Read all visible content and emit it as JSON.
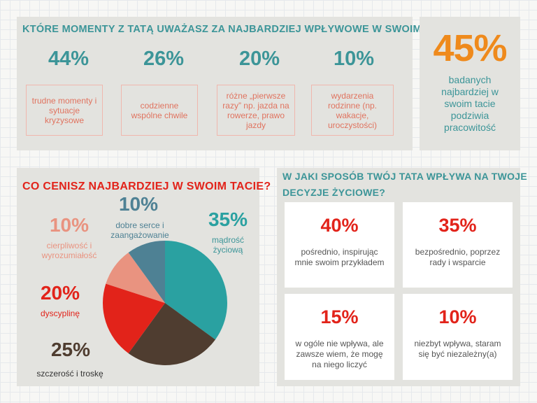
{
  "colors": {
    "teal": "#3c9598",
    "red": "#e2231a",
    "salmon": "#e98f7a",
    "orange": "#ef8a1c",
    "brown": "#4f3d30",
    "slate": "#4e8194",
    "tealchart": "#2aa1a1",
    "salmonpie": "#e99380"
  },
  "moments": {
    "title": "KTÓRE MOMENTY Z TATĄ UWAŻASZ ZA NAJBARDZIEJ WPŁYWOWE W SWOIM ŻYCIU?",
    "items": [
      {
        "pct": "44%",
        "label": "trudne momenty i sytuacje kryzysowe"
      },
      {
        "pct": "26%",
        "label": "codzienne wspólne chwile"
      },
      {
        "pct": "20%",
        "label": "różne „pierwsze razy” np. jazda na rowerze, prawo jazdy"
      },
      {
        "pct": "10%",
        "label": "wydarzenia rodzinne (np. wakacje, uroczystości)"
      }
    ]
  },
  "admire": {
    "pct": "45%",
    "text": "badanych najbardziej w swoim tacie podziwia pracowitość"
  },
  "chart_data": {
    "type": "pie",
    "title": "CO CENISZ NAJBARDZIEJ W SWOIM TACIE?",
    "labels": [
      "mądrość życiową",
      "szczerość i troskę",
      "dyscyplinę",
      "cierpliwość i wyrozumiałość",
      "dobre serce i zaangażowanie"
    ],
    "values": [
      35,
      25,
      20,
      10,
      10
    ],
    "display": [
      "35%",
      "25%",
      "20%",
      "10%",
      "10%"
    ],
    "colors": [
      "#2aa1a1",
      "#4f3d30",
      "#e2231a",
      "#e99380",
      "#4e8194"
    ]
  },
  "decisions": {
    "title_line1": "W JAKI SPOSÓB TWÓJ TATA WPŁYWA NA TWOJE",
    "title_line2": "DECYZJE ŻYCIOWE?",
    "cards": [
      {
        "pct": "40%",
        "text": "pośrednio, inspirując mnie swoim przykładem"
      },
      {
        "pct": "35%",
        "text": "bezpośrednio, poprzez rady i wsparcie"
      },
      {
        "pct": "15%",
        "text": "w ogóle nie wpływa, ale zawsze wiem, że mogę na niego liczyć"
      },
      {
        "pct": "10%",
        "text": "niezbyt wpływa, staram się być niezależny(a)"
      }
    ]
  }
}
